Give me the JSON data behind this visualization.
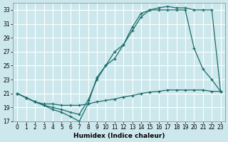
{
  "title": "",
  "xlabel": "Humidex (Indice chaleur)",
  "ylabel": "",
  "background_color": "#cde8ed",
  "grid_color": "#ffffff",
  "line_color": "#1a6b6b",
  "ylim": [
    17,
    34
  ],
  "xlim": [
    -0.5,
    23.5
  ],
  "yticks": [
    17,
    19,
    21,
    23,
    25,
    27,
    29,
    31,
    33
  ],
  "xticks": [
    0,
    1,
    2,
    3,
    4,
    5,
    6,
    7,
    8,
    9,
    10,
    11,
    12,
    13,
    14,
    15,
    16,
    17,
    18,
    19,
    20,
    21,
    22,
    23
  ],
  "line1_x": [
    0,
    1,
    2,
    3,
    4,
    5,
    6,
    7,
    8,
    9,
    10,
    11,
    12,
    13,
    14,
    15,
    16,
    17,
    18,
    19,
    20,
    21,
    22,
    23
  ],
  "line1_y": [
    21.0,
    20.4,
    19.8,
    19.5,
    19.5,
    19.3,
    19.3,
    19.3,
    19.5,
    19.8,
    20.0,
    20.2,
    20.5,
    20.7,
    21.0,
    21.2,
    21.3,
    21.5,
    21.5,
    21.5,
    21.5,
    21.5,
    21.3,
    21.3
  ],
  "line2_x": [
    0,
    1,
    2,
    3,
    4,
    5,
    6,
    7,
    8,
    9,
    10,
    11,
    12,
    13,
    14,
    15,
    16,
    17,
    18,
    19,
    20,
    21,
    22,
    23
  ],
  "line2_y": [
    21.0,
    20.4,
    19.8,
    19.3,
    18.7,
    18.3,
    17.7,
    17.0,
    19.5,
    23.3,
    25.0,
    27.0,
    28.0,
    30.5,
    32.5,
    33.0,
    33.0,
    33.0,
    33.0,
    33.0,
    27.5,
    24.5,
    23.0,
    21.3
  ],
  "line3_x": [
    0,
    1,
    2,
    3,
    4,
    5,
    6,
    7,
    8,
    9,
    10,
    11,
    12,
    13,
    14,
    15,
    16,
    17,
    18,
    19,
    20,
    21,
    22,
    23
  ],
  "line3_y": [
    21.0,
    20.4,
    19.8,
    19.3,
    19.0,
    18.7,
    18.3,
    18.0,
    20.0,
    23.0,
    25.0,
    26.0,
    28.0,
    30.0,
    32.0,
    33.0,
    33.3,
    33.5,
    33.3,
    33.3,
    33.0,
    33.0,
    33.0,
    21.3
  ]
}
